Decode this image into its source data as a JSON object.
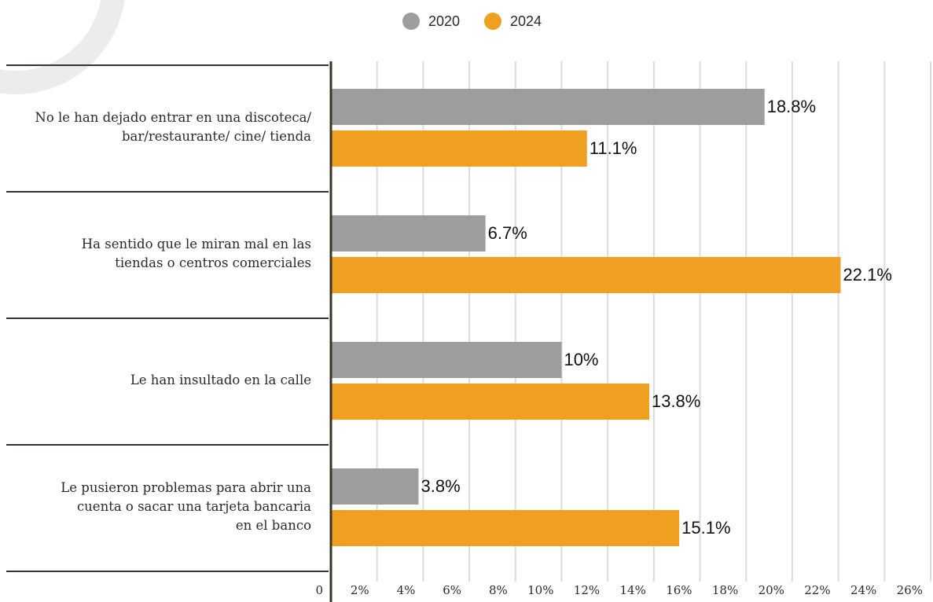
{
  "chart_data": {
    "type": "bar",
    "orientation": "horizontal",
    "categories": [
      "No le han dejado entrar en una discoteca/\nbar/restaurante/ cine/ tienda",
      "Ha sentido que le miran mal en las\ntiendas o centros comerciales",
      "Le han insultado en la calle",
      "Le pusieron problemas para abrir una\ncuenta o sacar una tarjeta bancaria\nen el banco"
    ],
    "series": [
      {
        "name": "2020",
        "color": "#9d9d9d",
        "values": [
          18.8,
          6.7,
          10,
          3.8
        ],
        "value_labels": [
          "18.8%",
          "6.7%",
          "10%",
          "3.8%"
        ]
      },
      {
        "name": "2024",
        "color": "#f0a020",
        "values": [
          11.1,
          22.1,
          13.8,
          15.1
        ],
        "value_labels": [
          "11.1%",
          "22.1%",
          "13.8%",
          "15.1%"
        ]
      }
    ],
    "xlim": [
      0,
      26
    ],
    "xticks": [
      0,
      {
        "value": 2,
        "label": "2%"
      },
      {
        "value": 4,
        "label": "4%"
      },
      {
        "value": 6,
        "label": "6%"
      },
      {
        "value": 8,
        "label": "8%"
      },
      {
        "value": 10,
        "label": "10%"
      },
      {
        "value": 12,
        "label": "12%"
      },
      {
        "value": 14,
        "label": "14%"
      },
      {
        "value": 16,
        "label": "16%"
      },
      {
        "value": 18,
        "label": "18%"
      },
      {
        "value": 20,
        "label": "20%"
      },
      {
        "value": 22,
        "label": "22%"
      },
      {
        "value": 24,
        "label": "24%"
      },
      {
        "value": 26,
        "label": "26%"
      }
    ],
    "grid": true,
    "legend": "top"
  }
}
